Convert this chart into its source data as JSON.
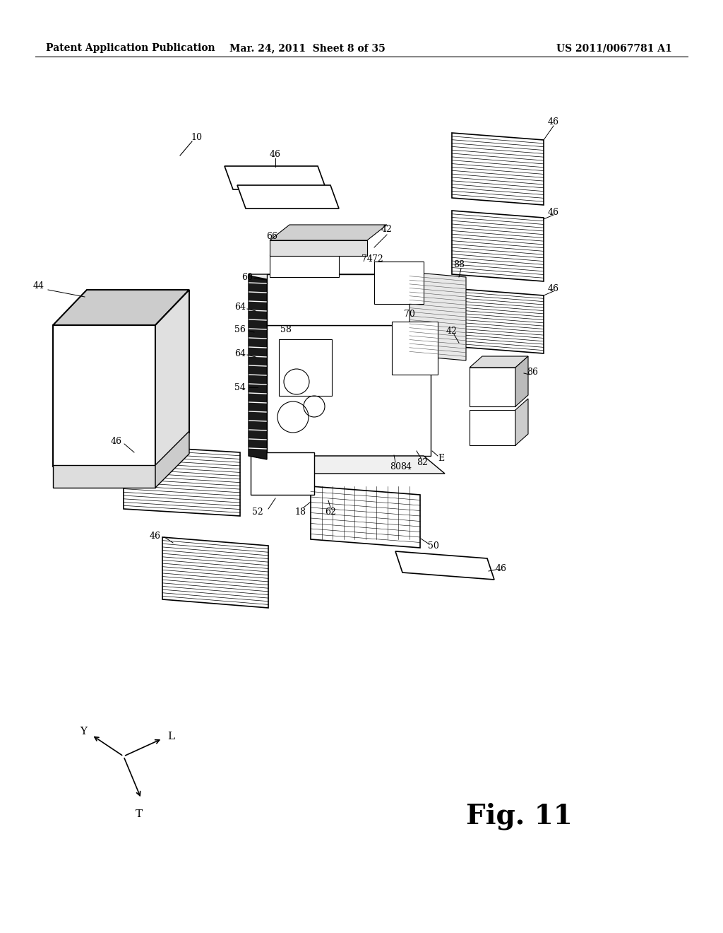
{
  "bg_color": "#ffffff",
  "header_left": "Patent Application Publication",
  "header_center": "Mar. 24, 2011  Sheet 8 of 35",
  "header_right": "US 2011/0067781 A1",
  "fig_label": "Fig. 11",
  "header_font_size": 10,
  "fig_font_size": 28,
  "label_font_size": 9
}
